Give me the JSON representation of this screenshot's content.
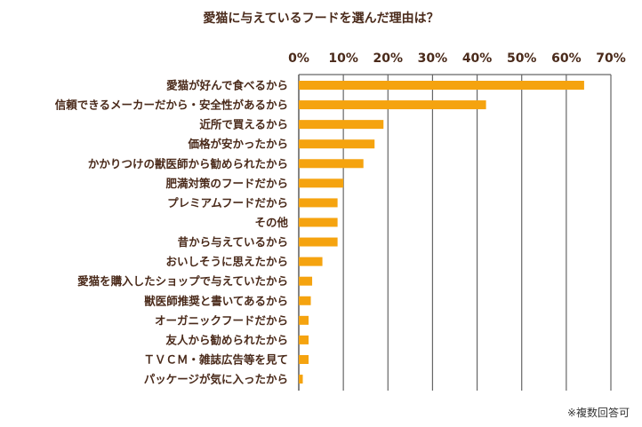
{
  "chart_data": {
    "type": "bar",
    "orientation": "horizontal",
    "title": "愛猫に与えているフードを選んだ理由は？",
    "note": "※複数回答可",
    "tick_labels": [
      "0%",
      "10%",
      "20%",
      "30%",
      "40%",
      "50%",
      "60%",
      "70%"
    ],
    "xlim": [
      0,
      70
    ],
    "grid": true,
    "bar_color": "#f5a30f",
    "grid_color": "#666666",
    "text_color": "#4a2a1a",
    "categories": [
      "愛猫が好んで食べるから",
      "信頼できるメーカーだから・安全性があるから",
      "近所で買えるから",
      "価格が安かったから",
      "かかりつけの獣医師から勧められたから",
      "肥満対策のフードだから",
      "プレミアムフードだから",
      "その他",
      "昔から与えているから",
      "おいしそうに思えたから",
      "愛猫を購入したショップで与えていたから",
      "獣医師推奨と書いてあるから",
      "オーガニックフードだから",
      "友人から勧められたから",
      "ＴＶＣＭ・雑誌広告等を見て",
      "パッケージが気に入ったから"
    ],
    "values": [
      64,
      42,
      19,
      17,
      14.5,
      10,
      8.7,
      8.7,
      8.7,
      5.3,
      3,
      2.7,
      2.2,
      2.2,
      2.2,
      0.9
    ]
  }
}
